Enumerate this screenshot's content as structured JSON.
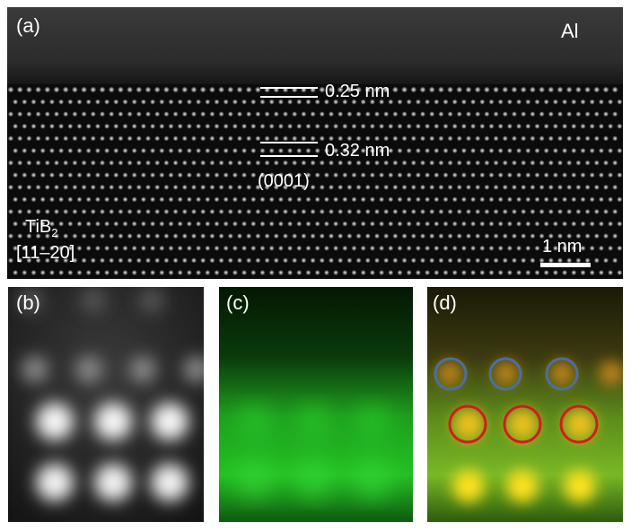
{
  "panels": {
    "a": {
      "label": "(a)"
    },
    "b": {
      "label": "(b)"
    },
    "c": {
      "label": "(c)"
    },
    "d": {
      "label": "(d)"
    }
  },
  "panel_a": {
    "top_phase": "Al",
    "spacing_upper": "0.25 nm",
    "spacing_lower": "0.32 nm",
    "plane": "(0001)",
    "crystal": "TiB",
    "crystal_subscript": "2",
    "zone_axis": "[11–20]",
    "scale_bar": "1 nm"
  },
  "colors": {
    "background": "#000000",
    "atom_haadf": "#ffffff",
    "eels_green": "#2ad12a",
    "overlay_yellow": "#ffe21a",
    "circle_blue": "#4a6fa5",
    "circle_red": "#d21c1c"
  }
}
